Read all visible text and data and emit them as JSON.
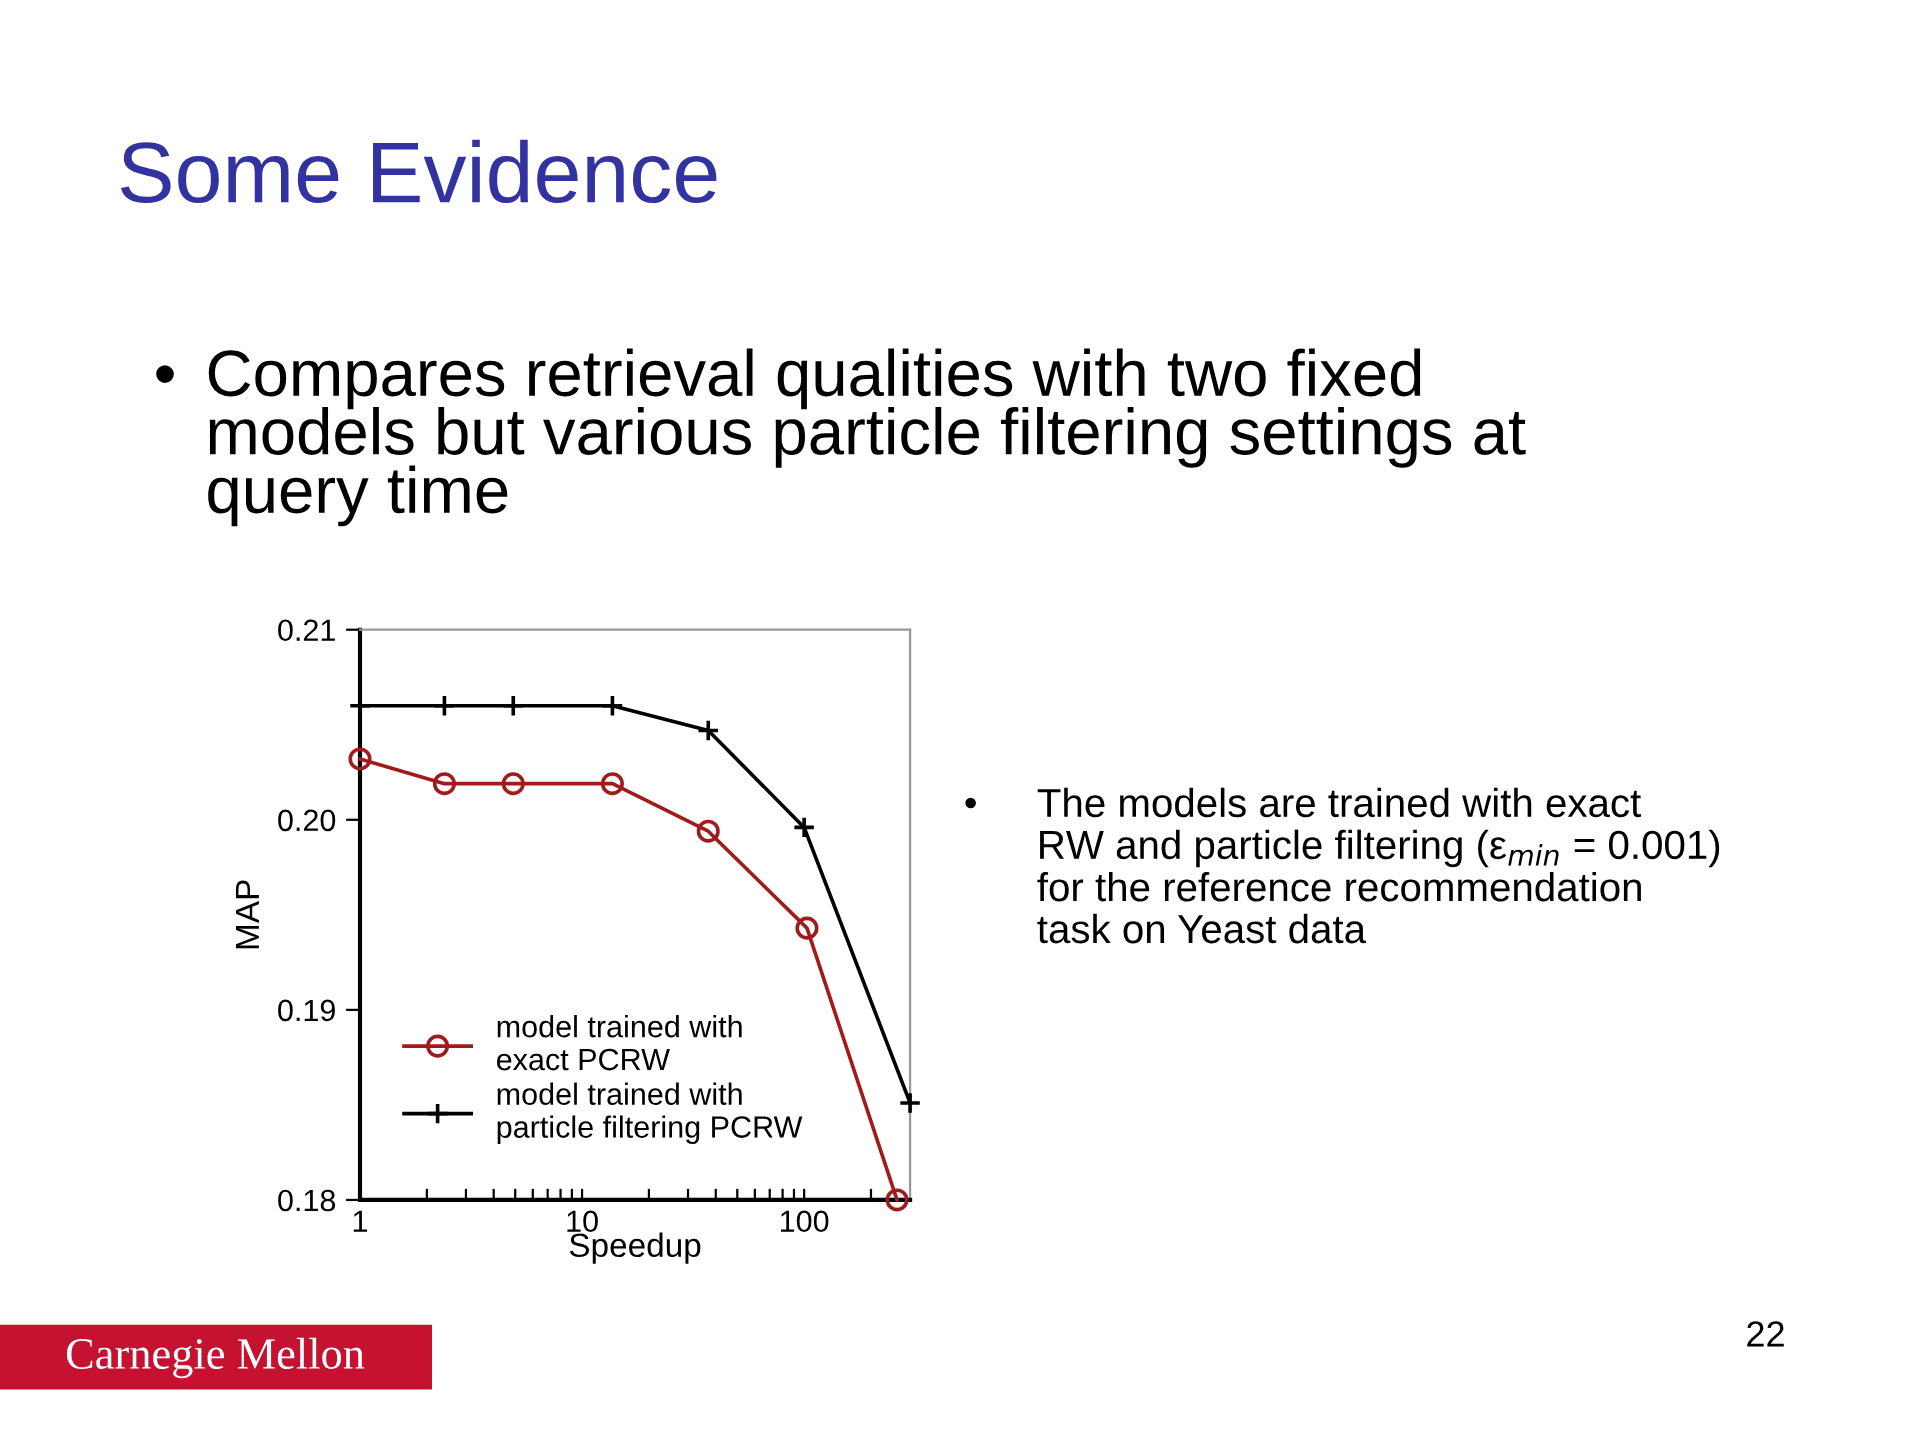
{
  "chart_data": {
    "type": "line",
    "title": "Some Evidence",
    "xlabel": "Speedup",
    "ylabel": "MAP",
    "log": "x",
    "xlim": [
      1,
      300
    ],
    "xticks": [
      1,
      {
        "value": 2,
        "label": null
      },
      {
        "value": 3,
        "label": null
      },
      {
        "value": 4,
        "label": null
      },
      {
        "value": 5,
        "label": null
      },
      {
        "value": 6,
        "label": null
      },
      {
        "value": 7,
        "label": null
      },
      {
        "value": 8,
        "label": null
      },
      {
        "value": 9,
        "label": null
      },
      10,
      {
        "value": 20,
        "label": null
      },
      {
        "value": 30,
        "label": null
      },
      {
        "value": 40,
        "label": null
      },
      {
        "value": 50,
        "label": null
      },
      {
        "value": 60,
        "label": null
      },
      {
        "value": 70,
        "label": null
      },
      {
        "value": 80,
        "label": null
      },
      {
        "value": 90,
        "label": null
      },
      100,
      {
        "value": 200,
        "label": null
      }
    ],
    "ylim": [
      0.18,
      0.21
    ],
    "yticks": [
      {
        "value": 0.18,
        "label": "0.18"
      },
      {
        "value": 0.19,
        "label": "0.19"
      },
      {
        "value": 0.2,
        "label": "0.20"
      },
      {
        "value": 0.21,
        "label": "0.21"
      }
    ],
    "grid": false,
    "legend": "bottom left",
    "series": [
      {
        "name": "model trained with\nexact PCRW",
        "color": "#a01c1c",
        "marker": "circle",
        "x": [
          1,
          2.4,
          4.9,
          13.7,
          37,
          103,
          262
        ],
        "values": [
          0.2032,
          0.2019,
          0.2019,
          0.2019,
          0.1994,
          0.1943,
          0.18
        ]
      },
      {
        "name": "model trained with\nparticle filtering PCRW",
        "color": "#000000",
        "marker": "cross",
        "x": [
          1,
          2.4,
          4.9,
          13.7,
          37,
          100,
          300
        ],
        "values": [
          0.206,
          0.206,
          0.206,
          0.206,
          0.2047,
          0.1996,
          0.1851
        ]
      }
    ],
    "annotations": [
      "Compares retrieval qualities with two fixed\nmodels but various particle filtering settings at\nquery time",
      "The models are trained with exact\nRW and particle filtering (ε$_{min}$ = 0.001)\nfor the reference recommendation\ntask on Yeast data",
      "22",
      "Carnegie Mellon",
      "•",
      "•"
    ]
  }
}
